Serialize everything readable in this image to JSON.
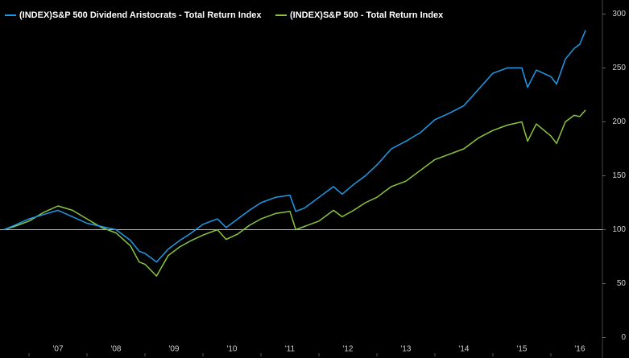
{
  "chart_data": {
    "type": "line",
    "x": [
      2006.57,
      2006.75,
      2007.0,
      2007.25,
      2007.5,
      2007.75,
      2008.0,
      2008.25,
      2008.5,
      2008.75,
      2008.9,
      2009.0,
      2009.2,
      2009.4,
      2009.6,
      2009.8,
      2010.0,
      2010.25,
      2010.4,
      2010.6,
      2010.8,
      2011.0,
      2011.25,
      2011.5,
      2011.6,
      2011.75,
      2012.0,
      2012.25,
      2012.4,
      2012.6,
      2012.8,
      2013.0,
      2013.25,
      2013.5,
      2013.75,
      2014.0,
      2014.25,
      2014.5,
      2014.75,
      2015.0,
      2015.25,
      2015.5,
      2015.6,
      2015.75,
      2016.0,
      2016.1,
      2016.25,
      2016.4,
      2016.5,
      2016.6
    ],
    "series": [
      {
        "name": "(INDEX)S&P 500 Dividend Aristocrats - Total Return Index",
        "color": "#1e9be8",
        "values": [
          100,
          104,
          110,
          114,
          118,
          112,
          106,
          103,
          100,
          90,
          80,
          78,
          70,
          82,
          90,
          97,
          105,
          110,
          102,
          110,
          118,
          125,
          130,
          132,
          117,
          120,
          130,
          140,
          133,
          142,
          150,
          160,
          175,
          182,
          190,
          202,
          208,
          215,
          230,
          245,
          250,
          250,
          232,
          248,
          242,
          235,
          258,
          268,
          272,
          285
        ]
      },
      {
        "name": "(INDEX)S&P 500 - Total Return Index",
        "color": "#8cc63f",
        "values": [
          100,
          103,
          108,
          116,
          122,
          118,
          110,
          102,
          97,
          85,
          70,
          68,
          57,
          76,
          84,
          90,
          95,
          100,
          91,
          96,
          104,
          110,
          115,
          117,
          100,
          103,
          108,
          118,
          112,
          118,
          125,
          130,
          140,
          145,
          155,
          165,
          170,
          175,
          185,
          192,
          197,
          200,
          182,
          198,
          187,
          180,
          200,
          206,
          205,
          211
        ]
      }
    ],
    "xlim": [
      2006.5,
      2016.89
    ],
    "xticks": [
      {
        "value": 2007,
        "label": "'07"
      },
      {
        "value": 2008,
        "label": "'08"
      },
      {
        "value": 2009,
        "label": "'09"
      },
      {
        "value": 2010,
        "label": "'10"
      },
      {
        "value": 2011,
        "label": "'11"
      },
      {
        "value": 2012,
        "label": "'12"
      },
      {
        "value": 2013,
        "label": "'13"
      },
      {
        "value": 2014,
        "label": "'14"
      },
      {
        "value": 2015,
        "label": "'15"
      },
      {
        "value": 2016,
        "label": "'16"
      }
    ],
    "ylim": [
      -19,
      313
    ],
    "yticks": [
      0,
      50,
      100,
      150,
      200,
      250,
      300
    ],
    "hline": 100
  }
}
